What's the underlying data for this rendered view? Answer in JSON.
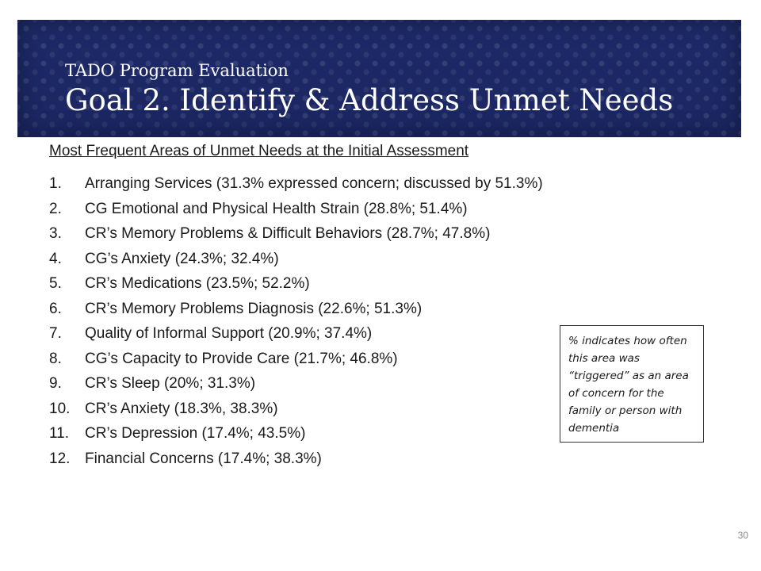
{
  "banner": {
    "subtitle": "TADO Program Evaluation",
    "title": "Goal 2. Identify & Address Unmet Needs"
  },
  "heading": "Most Frequent Areas of Unmet Needs at the Initial Assessment",
  "needs": [
    {
      "num": "1.",
      "text": "Arranging Services (31.3% expressed concern; discussed by 51.3%)"
    },
    {
      "num": "2.",
      "text": "CG Emotional and Physical Health Strain (28.8%; 51.4%)"
    },
    {
      "num": "3.",
      "text": "CR’s Memory Problems & Difficult Behaviors (28.7%; 47.8%)"
    },
    {
      "num": "4.",
      "text": "CG’s Anxiety (24.3%; 32.4%)"
    },
    {
      "num": "5.",
      "text": "CR’s Medications (23.5%; 52.2%)"
    },
    {
      "num": "6.",
      "text": "CR’s Memory Problems Diagnosis (22.6%; 51.3%)"
    },
    {
      "num": "7.",
      "text": "Quality of Informal Support (20.9%; 37.4%)"
    },
    {
      "num": "8.",
      "text": "CG’s Capacity to Provide Care (21.7%; 46.8%)"
    },
    {
      "num": "9.",
      "text": "CR’s Sleep (20%; 31.3%)"
    },
    {
      "num": "10.",
      "text": "CR’s Anxiety (18.3%, 38.3%)"
    },
    {
      "num": "11.",
      "text": "CR’s Depression (17.4%; 43.5%)"
    },
    {
      "num": "12.",
      "text": "Financial Concerns (17.4%; 38.3%)"
    }
  ],
  "note": "% indicates how often this area was “triggered” as an area of concern for the family or person with dementia",
  "page_number": "30",
  "colors": {
    "banner_background": "#1e2a66",
    "banner_text": "#ffffff",
    "body_text": "#1a1a1a"
  }
}
